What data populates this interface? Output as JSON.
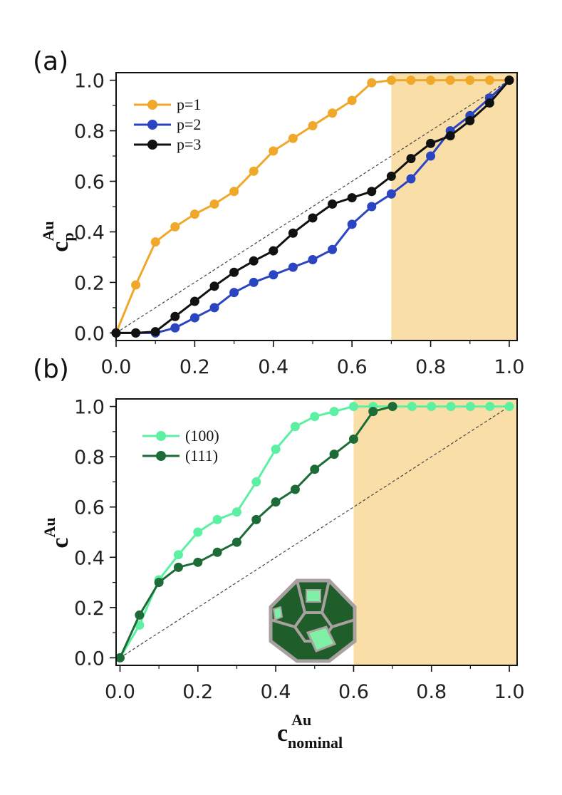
{
  "chart_data": [
    {
      "type": "line",
      "panel_label": "(a)",
      "xlabel": {
        "main": "",
        "sup": "",
        "sub": ""
      },
      "ylabel": {
        "main": "c",
        "sup": "Au",
        "sub": "p"
      },
      "xlim": [
        0,
        1.02
      ],
      "ylim": [
        -0.03,
        1.03
      ],
      "xticks": [
        "0.0",
        "0.2",
        "0.4",
        "0.6",
        "0.8",
        "1.0"
      ],
      "yticks": [
        "0.0",
        "0.2",
        "0.4",
        "0.6",
        "0.8",
        "1.0"
      ],
      "shaded_region": {
        "x_from": 0.7,
        "x_to": 1.02,
        "color": "#f9dfa7"
      },
      "diagonal": true,
      "legend_position": "top-left",
      "grid": false,
      "series": [
        {
          "name": "p=1",
          "color": "#f0a82a",
          "x": [
            0,
            0.05,
            0.1,
            0.15,
            0.2,
            0.25,
            0.3,
            0.35,
            0.4,
            0.45,
            0.5,
            0.55,
            0.6,
            0.65,
            0.7,
            0.75,
            0.8,
            0.85,
            0.9,
            0.95,
            1.0
          ],
          "y": [
            0,
            0.19,
            0.36,
            0.42,
            0.47,
            0.51,
            0.56,
            0.64,
            0.72,
            0.77,
            0.82,
            0.87,
            0.92,
            0.99,
            1.0,
            1.0,
            1.0,
            1.0,
            1.0,
            1.0,
            1.0
          ]
        },
        {
          "name": "p=2",
          "color": "#2b45c2",
          "x": [
            0,
            0.05,
            0.1,
            0.15,
            0.2,
            0.25,
            0.3,
            0.35,
            0.4,
            0.45,
            0.5,
            0.55,
            0.6,
            0.65,
            0.7,
            0.75,
            0.8,
            0.85,
            0.9,
            0.95,
            1.0
          ],
          "y": [
            0,
            0,
            0,
            0.02,
            0.06,
            0.1,
            0.16,
            0.2,
            0.23,
            0.26,
            0.29,
            0.33,
            0.43,
            0.5,
            0.55,
            0.61,
            0.7,
            0.8,
            0.86,
            0.93,
            1.0
          ]
        },
        {
          "name": "p=3",
          "color": "#111111",
          "x": [
            0,
            0.05,
            0.1,
            0.15,
            0.2,
            0.25,
            0.3,
            0.35,
            0.4,
            0.45,
            0.5,
            0.55,
            0.6,
            0.65,
            0.7,
            0.75,
            0.8,
            0.85,
            0.9,
            0.95,
            1.0
          ],
          "y": [
            0,
            0,
            0.005,
            0.065,
            0.125,
            0.185,
            0.24,
            0.285,
            0.325,
            0.395,
            0.455,
            0.51,
            0.535,
            0.56,
            0.62,
            0.69,
            0.75,
            0.78,
            0.84,
            0.91,
            1.0
          ]
        }
      ]
    },
    {
      "type": "line",
      "panel_label": "(b)",
      "xlabel": {
        "main": "c",
        "sup": "Au",
        "sub": "nominal"
      },
      "ylabel": {
        "main": "c",
        "sup": "Au",
        "sub": ""
      },
      "xlim": [
        -0.01,
        1.02
      ],
      "ylim": [
        -0.03,
        1.03
      ],
      "xticks": [
        "0.0",
        "0.2",
        "0.4",
        "0.6",
        "0.8",
        "1.0"
      ],
      "yticks": [
        "0.0",
        "0.2",
        "0.4",
        "0.6",
        "0.8",
        "1.0"
      ],
      "shaded_region": {
        "x_from": 0.6,
        "x_to": 1.02,
        "color": "#f9dfa7"
      },
      "diagonal": true,
      "legend_position": "top-left",
      "grid": false,
      "series": [
        {
          "name": "(100)",
          "color": "#5cf0a2",
          "x": [
            0,
            0.05,
            0.1,
            0.15,
            0.2,
            0.25,
            0.3,
            0.35,
            0.4,
            0.45,
            0.5,
            0.55,
            0.6,
            0.65,
            0.7,
            0.75,
            0.8,
            0.85,
            0.9,
            0.95,
            1.0
          ],
          "y": [
            0,
            0.13,
            0.31,
            0.41,
            0.5,
            0.55,
            0.58,
            0.7,
            0.83,
            0.92,
            0.96,
            0.98,
            1.0,
            1.0,
            1.0,
            1.0,
            1.0,
            1.0,
            1.0,
            1.0,
            1.0
          ]
        },
        {
          "name": "(111)",
          "color": "#1d6b36",
          "x": [
            0,
            0.05,
            0.1,
            0.15,
            0.2,
            0.25,
            0.3,
            0.35,
            0.4,
            0.45,
            0.5,
            0.55,
            0.6,
            0.65,
            0.7
          ],
          "y": [
            0,
            0.17,
            0.3,
            0.36,
            0.38,
            0.42,
            0.46,
            0.55,
            0.62,
            0.67,
            0.75,
            0.81,
            0.87,
            0.98,
            1.0
          ]
        }
      ]
    }
  ]
}
